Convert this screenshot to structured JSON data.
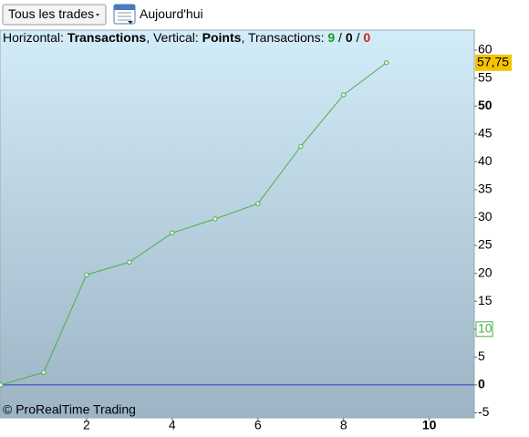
{
  "toolbar": {
    "dropdown": "Tous les trades",
    "button": "Aujourd'hui"
  },
  "chart_data": {
    "type": "line",
    "title_parts": [
      {
        "text": "Horizontal: "
      },
      {
        "text": "Transactions",
        "bold": true
      },
      {
        "text": ", Vertical: "
      },
      {
        "text": "Points",
        "bold": true
      },
      {
        "text": ", Transactions: "
      },
      {
        "text": "9",
        "bold": true,
        "color": "#1a9a1a"
      },
      {
        "text": " / "
      },
      {
        "text": "0",
        "bold": true
      },
      {
        "text": " / "
      },
      {
        "text": "0",
        "bold": true,
        "color": "#cc2222"
      }
    ],
    "footer": "© ProRealTime Trading",
    "x": [
      0,
      1,
      2,
      3,
      4,
      5,
      6,
      7,
      8,
      9
    ],
    "series": [
      {
        "color": "#4cae4c",
        "values": [
          0,
          2.25,
          19.75,
          22,
          27.25,
          29.75,
          32.5,
          42.75,
          52,
          57.75
        ]
      }
    ],
    "last_value": {
      "value": 57.75,
      "label": "57,75"
    },
    "xlim": [
      -0.02,
      11.05
    ],
    "xticks": [
      2,
      4,
      6,
      8,
      10
    ],
    "bold_xticks": [
      10
    ],
    "ylim": [
      -5.9,
      63.6
    ],
    "yticks": [
      -5,
      0,
      5,
      10,
      15,
      20,
      25,
      30,
      35,
      40,
      45,
      50,
      55,
      60
    ],
    "bold_yticks": [
      0,
      50
    ],
    "highlight_ytick": 10,
    "zero_line": true,
    "zero_line_color": "#2b3fcc"
  }
}
